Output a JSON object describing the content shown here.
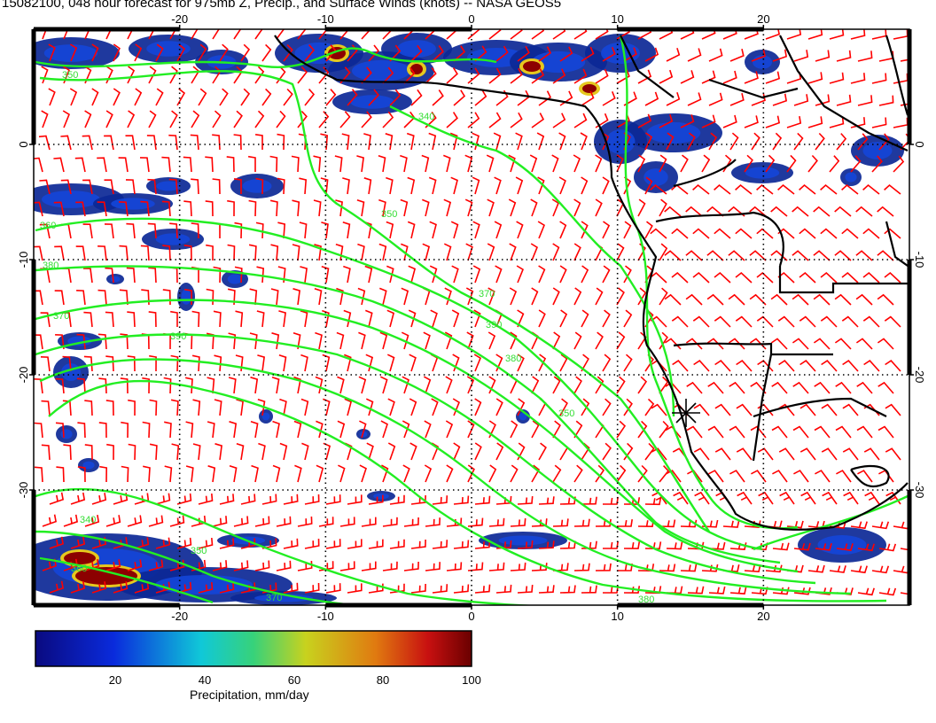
{
  "title": "15082100, 048 hour forecast for 975mb Z, Precip., and Surface Winds (knots) -- NASA GEOS5",
  "map": {
    "lon_ticks": [
      "-20",
      "-10",
      "0",
      "10",
      "20"
    ],
    "lat_ticks": [
      "0",
      "-10",
      "-20",
      "-30"
    ],
    "lon_range": [
      -30,
      30
    ],
    "lat_range": [
      -40,
      10
    ],
    "grid": "dotted",
    "marker": "star-marker",
    "contour_labels": [
      "350",
      "340",
      "350",
      "360",
      "370",
      "380",
      "390",
      "370",
      "380",
      "390",
      "350",
      "340",
      "350",
      "360",
      "370",
      "380"
    ],
    "colors": {
      "contour": "#22ee22",
      "barb": "#ff0000",
      "coast": "#000000",
      "precip_low": "#0a1f8c",
      "precip_high": "#7a0000"
    }
  },
  "colorbar": {
    "label": "Precipitation, mm/day",
    "ticks": [
      "20",
      "40",
      "60",
      "80",
      "100"
    ],
    "range": [
      0,
      100
    ]
  }
}
